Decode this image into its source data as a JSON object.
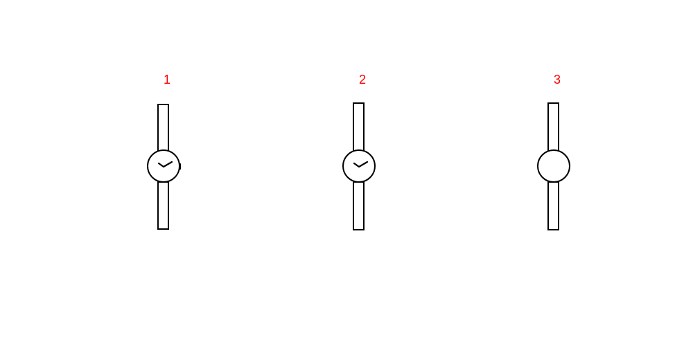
{
  "colors": {
    "label": "#ff0000",
    "outline": "#000000",
    "background": "#ffffff"
  },
  "watches": [
    {
      "label": "1",
      "has_hands": true,
      "has_crown": true
    },
    {
      "label": "2",
      "has_hands": true,
      "has_crown": false
    },
    {
      "label": "3",
      "has_hands": false,
      "has_crown": false
    }
  ]
}
